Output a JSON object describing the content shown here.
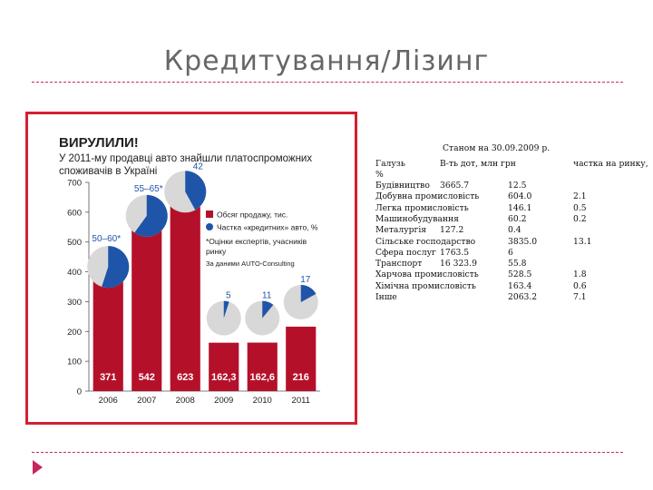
{
  "slide": {
    "title": "Кредитування/Лізинг"
  },
  "chart_data": {
    "type": "bar",
    "title": "ВИРУЛИЛИ!",
    "subtitle_line1": "У 2011-му продавці авто знайшли платоспроможних",
    "subtitle_line2": "споживачів в Україні",
    "categories": [
      "2006",
      "2007",
      "2008",
      "2009",
      "2010",
      "2011"
    ],
    "series": [
      {
        "name": "Обсяг продажу, тис.",
        "values": [
          371,
          542,
          623,
          162.3,
          162.6,
          216
        ]
      },
      {
        "name": "Частка «кредитних» авто, %",
        "values": [
          55,
          60,
          42,
          5,
          11,
          17
        ]
      }
    ],
    "bar_labels": [
      "371",
      "542",
      "623",
      "162,3",
      "162,6",
      "216"
    ],
    "pie_labels": [
      "50–60*",
      "55–65*",
      "42",
      "5",
      "11",
      "17"
    ],
    "ylim": [
      0,
      700
    ],
    "yticks": [
      0,
      100,
      200,
      300,
      400,
      500,
      600,
      700
    ],
    "legend": [
      "Обсяг продажу, тис.",
      "Частка «кредитних» авто, %"
    ],
    "note_line1": "*Оцінки експертів, учасників",
    "note_line2": "ринку",
    "source": "За даними AUTO-Consulting",
    "colors": {
      "bar": "#b5102a",
      "pie_share": "#1f55a8",
      "pie_rest": "#d8d8d8",
      "frame": "#d42030"
    }
  },
  "table": {
    "caption": "Станом на 30.09.2009 р.",
    "header": [
      "Галузь",
      "В-ть дот, млн грн",
      "частка на ринку,"
    ],
    "header_cont": "%",
    "rows": [
      [
        "Будівництво",
        "3665.7",
        "12.5"
      ],
      [
        "Добувна промисловість",
        "604.0",
        "2.1"
      ],
      [
        "Легка промисловість",
        "146.1",
        "0.5"
      ],
      [
        "Машинобудування",
        "60.2",
        "0.2"
      ],
      [
        "Металургія",
        "127.2",
        "0.4"
      ],
      [
        "Сільське господарство",
        "3835.0",
        "13.1"
      ],
      [
        "Сфера послуг",
        "1763.5",
        "6"
      ],
      [
        "Транспорт",
        "16 323.9",
        "55.8"
      ],
      [
        "Харчова промисловість",
        "528.5",
        "1.8"
      ],
      [
        "Хімічна промисловість",
        "163.4",
        "0.6"
      ],
      [
        "Інше",
        "2063.2",
        "7.1"
      ]
    ]
  }
}
